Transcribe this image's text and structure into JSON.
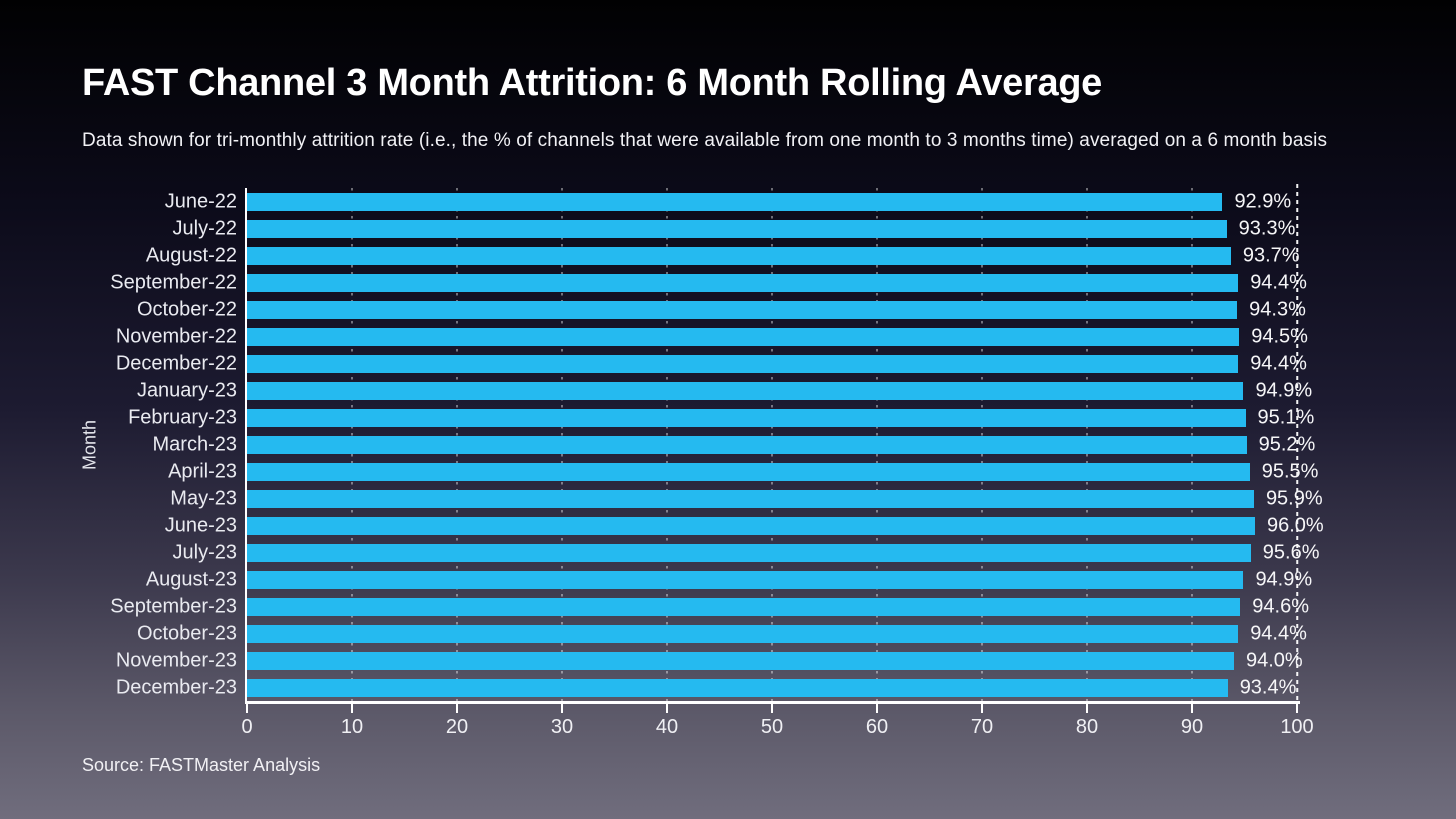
{
  "title": "FAST Channel 3 Month Attrition: 6 Month Rolling Average",
  "subtitle": "Data shown for tri-monthly attrition rate (i.e., the % of channels that were available from one month to 3 months time) averaged on a 6 month basis",
  "source": "Source: FASTMaster Analysis",
  "colors": {
    "bar": "#25baf0",
    "axis_line": "#ffffff",
    "text": "#f4f4f6",
    "background_top": "#010102",
    "background_bottom": "#706d7d"
  },
  "chart_data": {
    "type": "bar",
    "orientation": "horizontal",
    "title": "FAST Channel 3 Month Attrition: 6 Month Rolling Average",
    "xlabel": "",
    "ylabel": "Month",
    "xlim": [
      0,
      100
    ],
    "xticks": [
      0,
      10,
      20,
      30,
      40,
      50,
      60,
      70,
      80,
      90,
      100
    ],
    "grid": "vertical-dashed",
    "legend": "none",
    "categories": [
      "June-22",
      "July-22",
      "August-22",
      "September-22",
      "October-22",
      "November-22",
      "December-22",
      "January-23",
      "February-23",
      "March-23",
      "April-23",
      "May-23",
      "June-23",
      "July-23",
      "August-23",
      "September-23",
      "October-23",
      "November-23",
      "December-23"
    ],
    "values": [
      92.9,
      93.3,
      93.7,
      94.4,
      94.3,
      94.5,
      94.4,
      94.9,
      95.1,
      95.2,
      95.5,
      95.9,
      96.0,
      95.6,
      94.9,
      94.6,
      94.4,
      94.0,
      93.4
    ],
    "value_labels": [
      "92.9%",
      "93.3%",
      "93.7%",
      "94.4%",
      "94.3%",
      "94.5%",
      "94.4%",
      "94.9%",
      "95.1%",
      "95.2%",
      "95.5%",
      "95.9%",
      "96.0%",
      "95.6%",
      "94.9%",
      "94.6%",
      "94.4%",
      "94.0%",
      "93.4%"
    ]
  }
}
